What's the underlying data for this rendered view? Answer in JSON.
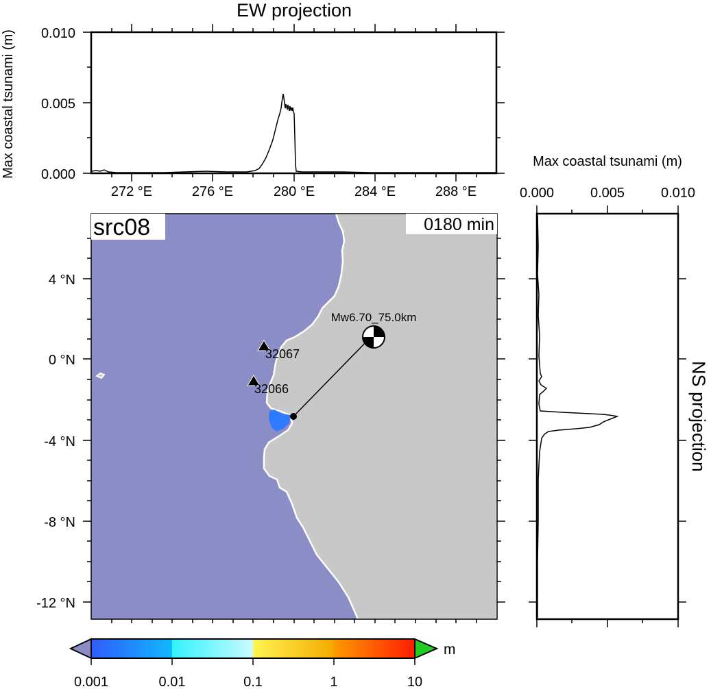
{
  "source_label": "src08",
  "time_label": "0180 min",
  "ew_panel": {
    "title": "EW projection",
    "ylabel": "Max coastal tsunami (m)",
    "y_ticks": [
      "0.010",
      "0.005",
      "0.000"
    ],
    "x_ticks": [
      "272 °E",
      "276 °E",
      "280 °E",
      "284 °E",
      "288 °E"
    ]
  },
  "ns_panel": {
    "title": "NS projection",
    "xlabel": "Max coastal tsunami (m)",
    "x_ticks": [
      "0.000",
      "0.005",
      "0.010"
    ]
  },
  "map": {
    "lat_ticks": [
      "4 °N",
      "0 °N",
      "-4 °N",
      "-8 °N",
      "-12 °N"
    ],
    "lon_range": [
      270,
      290
    ],
    "lat_range": [
      -12.8,
      7.2
    ],
    "colors": {
      "sea": "#8b8dc7",
      "land": "#c8c8c8",
      "coast": "#ffffff",
      "max_height_patch": "#2f7bff"
    },
    "epicenter": {
      "label": "Mw6.70_75.0km",
      "lon": 283.9,
      "lat": 1.1
    },
    "coastal_point": {
      "lon": 280.1,
      "lat": -2.8
    },
    "stations": [
      {
        "id": "32067",
        "lon": 278.4,
        "lat": 0.6
      },
      {
        "id": "32066",
        "lon": 277.9,
        "lat": -1.1
      }
    ]
  },
  "colorbar": {
    "unit": "m",
    "tick_labels": [
      "0.001",
      "0.01",
      "0.1",
      "1",
      "10"
    ],
    "below_color": "#8b8dc7",
    "above_color": "#22cc22"
  }
}
